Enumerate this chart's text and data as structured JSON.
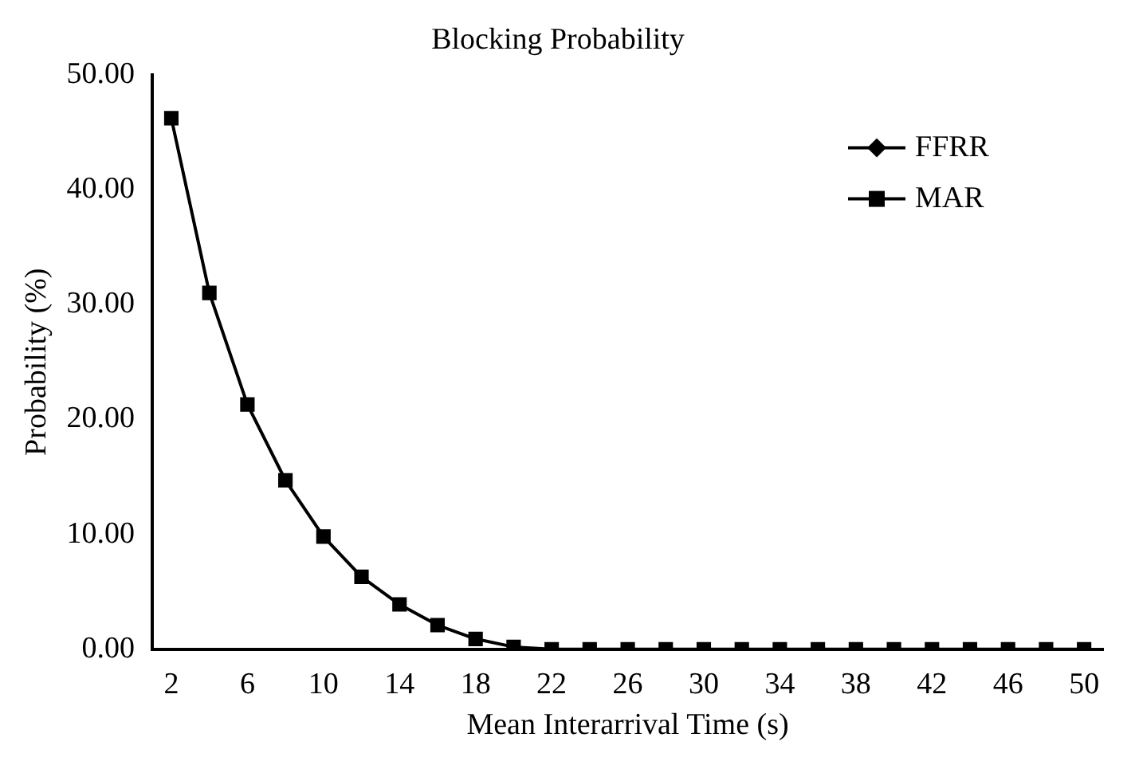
{
  "chart_data": {
    "type": "line",
    "title": "Blocking Probability",
    "xlabel": "Mean Interarrival Time (s)",
    "ylabel": "Probability (%)",
    "x": [
      2,
      4,
      6,
      8,
      10,
      12,
      14,
      16,
      18,
      20,
      22,
      24,
      26,
      28,
      30,
      32,
      34,
      36,
      38,
      40,
      42,
      44,
      46,
      48,
      50
    ],
    "series": [
      {
        "name": "FFRR",
        "color": "#000000",
        "marker": "diamond",
        "values": [
          null,
          null,
          null,
          null,
          null,
          null,
          null,
          null,
          null,
          null,
          null,
          null,
          null,
          null,
          null,
          null,
          null,
          null,
          null,
          null,
          null,
          null,
          null,
          null,
          null
        ]
      },
      {
        "name": "MAR",
        "color": "#000000",
        "marker": "square",
        "values": [
          46.2,
          31.0,
          21.3,
          14.7,
          9.8,
          6.3,
          3.9,
          2.1,
          0.9,
          0.2,
          0,
          0,
          0,
          0,
          0,
          0,
          0,
          0,
          0,
          0,
          0,
          0,
          0,
          0,
          0
        ]
      }
    ],
    "xlim": [
      1,
      51
    ],
    "xticks": [
      2,
      6,
      10,
      14,
      18,
      22,
      26,
      30,
      34,
      38,
      42,
      46,
      50
    ],
    "ylim": [
      0,
      50
    ],
    "yticks": [
      {
        "value": 0,
        "label": "0.00"
      },
      {
        "value": 10,
        "label": "10.00"
      },
      {
        "value": 20,
        "label": "20.00"
      },
      {
        "value": 30,
        "label": "30.00"
      },
      {
        "value": 40,
        "label": "40.00"
      },
      {
        "value": 50,
        "label": "50.00"
      }
    ],
    "grid": false,
    "legend": "top right",
    "line_style": "solid"
  }
}
